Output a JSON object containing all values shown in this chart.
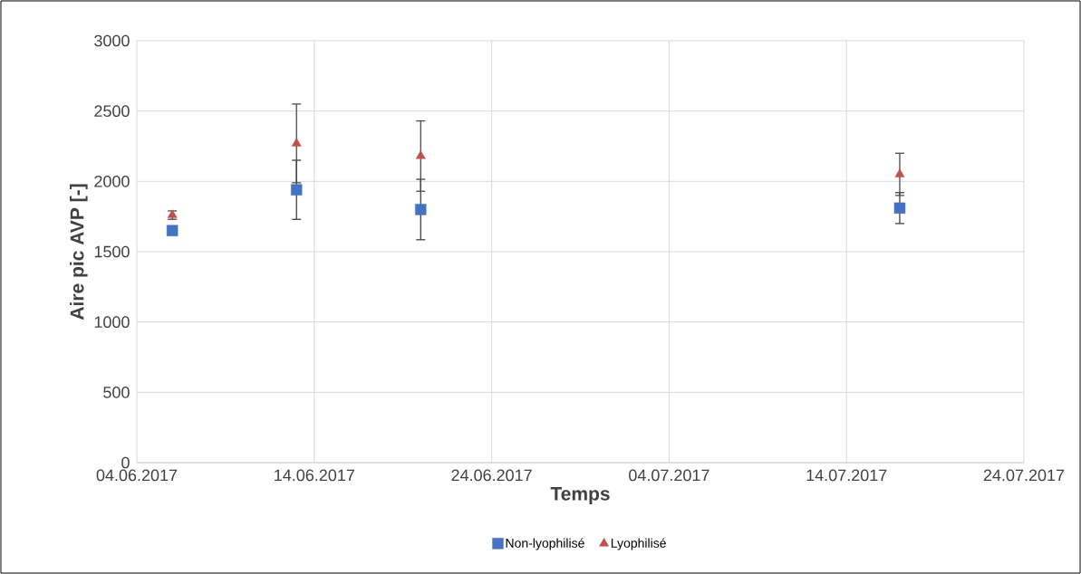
{
  "chart_data": {
    "type": "scatter",
    "xlabel": "Temps",
    "ylabel": "Aire pic AVP [-]",
    "x": [
      "2017-06-06",
      "2017-06-13",
      "2017-06-20",
      "2017-07-17"
    ],
    "series": [
      {
        "name": "Non-lyophilisé",
        "color": "#4472c4",
        "marker": "square",
        "values": [
          1650,
          1940,
          1800,
          1810
        ],
        "errors": [
          null,
          210,
          215,
          110
        ]
      },
      {
        "name": "Lyophilisé",
        "color": "#c0504d",
        "marker": "triangle",
        "values": [
          1760,
          2270,
          2180,
          2050
        ],
        "errors": [
          30,
          280,
          250,
          150
        ]
      }
    ],
    "xlim": [
      "2017-06-04",
      "2017-07-24"
    ],
    "xticks": [
      {
        "value": "2017-06-04",
        "label": "04.06.2017"
      },
      {
        "value": "2017-06-14",
        "label": "14.06.2017"
      },
      {
        "value": "2017-06-24",
        "label": "24.06.2017"
      },
      {
        "value": "2017-07-04",
        "label": "04.07.2017"
      },
      {
        "value": "2017-07-14",
        "label": "14.07.2017"
      },
      {
        "value": "2017-07-24",
        "label": "24.07.2017"
      }
    ],
    "ylim": [
      0,
      3000
    ],
    "yticks": [
      0,
      500,
      1000,
      1500,
      2000,
      2500,
      3000
    ],
    "grid": true,
    "legend": "bottom"
  }
}
